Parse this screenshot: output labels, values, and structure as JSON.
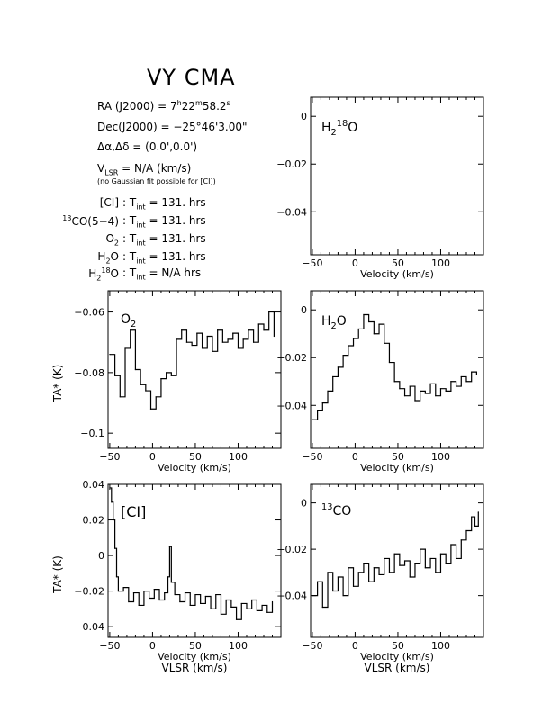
{
  "header": {
    "title": "VY CMA",
    "ra_label": "RA (J2000)",
    "ra_value": "7h22m58.2s",
    "dec_label": "Dec(J2000)",
    "dec_value": "−25°46'3.00\"",
    "offset_label": "Δα,Δδ",
    "offset_value": "(0.0',0.0')",
    "vlsr_label": "VLSR",
    "vlsr_value": "N/A (km/s)",
    "note": "(no Gaussian fit possible for [CI])",
    "integrations": [
      {
        "species": "[CI]",
        "tint": "131. hrs"
      },
      {
        "species": "13CO(5−4)",
        "tint": "131. hrs"
      },
      {
        "species": "O2",
        "tint": "131. hrs"
      },
      {
        "species": "H2O",
        "tint": "131. hrs"
      },
      {
        "species": "H2 18O",
        "tint": "N/A hrs"
      }
    ]
  },
  "chart_data": [
    {
      "type": "line",
      "label": "H2 18O",
      "xlabel": "Velocity (km/s)",
      "ylabel": "",
      "xlim": [
        -52,
        150
      ],
      "ylim": [
        -0.058,
        0.008
      ],
      "xticks": [
        -50,
        0,
        50,
        100
      ],
      "xtick_labels": [
        "−50",
        "0",
        "50",
        "100"
      ],
      "yticks": [
        0,
        -0.02,
        -0.04
      ],
      "ytick_labels": [
        "0",
        "−0.02",
        "−0.04"
      ],
      "x": [],
      "y": []
    },
    {
      "type": "line",
      "label": "O2",
      "xlabel": "Velocity (km/s)",
      "ylabel": "TA* (K)",
      "xlim": [
        -52,
        150
      ],
      "ylim": [
        -0.105,
        -0.053
      ],
      "xticks": [
        -50,
        0,
        50,
        100
      ],
      "xtick_labels": [
        "−50",
        "0",
        "50",
        "100"
      ],
      "yticks": [
        -0.06,
        -0.08,
        -0.1
      ],
      "ytick_labels": [
        "−0.06",
        "−0.08",
        "−0.1"
      ],
      "x": [
        -50,
        -44,
        -38,
        -32,
        -26,
        -20,
        -14,
        -8,
        -2,
        4,
        10,
        16,
        22,
        28,
        34,
        40,
        46,
        52,
        58,
        64,
        70,
        76,
        82,
        88,
        94,
        100,
        106,
        112,
        118,
        124,
        130,
        136,
        142
      ],
      "y": [
        -0.074,
        -0.081,
        -0.088,
        -0.072,
        -0.066,
        -0.079,
        -0.084,
        -0.086,
        -0.092,
        -0.088,
        -0.082,
        -0.08,
        -0.081,
        -0.069,
        -0.066,
        -0.07,
        -0.071,
        -0.067,
        -0.072,
        -0.068,
        -0.073,
        -0.066,
        -0.07,
        -0.069,
        -0.067,
        -0.072,
        -0.069,
        -0.066,
        -0.07,
        -0.064,
        -0.066,
        -0.06,
        -0.068
      ]
    },
    {
      "type": "line",
      "label": "H2O",
      "xlabel": "Velocity (km/s)",
      "ylabel": "",
      "xlim": [
        -52,
        150
      ],
      "ylim": [
        -0.058,
        0.008
      ],
      "xticks": [
        -50,
        0,
        50,
        100
      ],
      "xtick_labels": [
        "−50",
        "0",
        "50",
        "100"
      ],
      "yticks": [
        0,
        -0.02,
        -0.04
      ],
      "ytick_labels": [
        "0",
        "−0.02",
        "−0.04"
      ],
      "x": [
        -50,
        -44,
        -38,
        -32,
        -26,
        -20,
        -14,
        -8,
        -2,
        4,
        10,
        16,
        22,
        28,
        34,
        40,
        46,
        52,
        58,
        64,
        70,
        76,
        82,
        88,
        94,
        100,
        106,
        112,
        118,
        124,
        130,
        136,
        142
      ],
      "y": [
        -0.046,
        -0.042,
        -0.039,
        -0.034,
        -0.028,
        -0.024,
        -0.019,
        -0.015,
        -0.012,
        -0.008,
        -0.002,
        -0.005,
        -0.01,
        -0.006,
        -0.014,
        -0.022,
        -0.03,
        -0.033,
        -0.036,
        -0.032,
        -0.038,
        -0.034,
        -0.035,
        -0.031,
        -0.036,
        -0.033,
        -0.034,
        -0.03,
        -0.032,
        -0.028,
        -0.03,
        -0.026,
        -0.027
      ]
    },
    {
      "type": "line",
      "label": "[CI]",
      "xlabel": "Velocity (km/s)",
      "ylabel": "TA* (K)",
      "xlim": [
        -52,
        150
      ],
      "ylim": [
        -0.046,
        0.04
      ],
      "xticks": [
        -50,
        0,
        50,
        100
      ],
      "xtick_labels": [
        "−50",
        "0",
        "50",
        "100"
      ],
      "yticks": [
        0.04,
        0.02,
        0,
        -0.02,
        -0.04
      ],
      "ytick_labels": [
        "0.04",
        "0.02",
        "0",
        "−0.02",
        "−0.04"
      ],
      "x": [
        -50,
        -48,
        -46,
        -44,
        -42,
        -40,
        -34,
        -28,
        -22,
        -16,
        -10,
        -4,
        2,
        8,
        14,
        18,
        20,
        22,
        26,
        32,
        38,
        44,
        50,
        56,
        62,
        68,
        74,
        80,
        86,
        92,
        98,
        104,
        110,
        116,
        122,
        128,
        134,
        140
      ],
      "y": [
        0.038,
        0.03,
        0.02,
        0.004,
        -0.012,
        -0.02,
        -0.018,
        -0.026,
        -0.021,
        -0.028,
        -0.02,
        -0.024,
        -0.019,
        -0.025,
        -0.021,
        -0.012,
        0.005,
        -0.015,
        -0.022,
        -0.026,
        -0.021,
        -0.028,
        -0.022,
        -0.027,
        -0.023,
        -0.03,
        -0.022,
        -0.033,
        -0.025,
        -0.029,
        -0.036,
        -0.027,
        -0.03,
        -0.025,
        -0.031,
        -0.028,
        -0.032,
        -0.026
      ]
    },
    {
      "type": "line",
      "label": "13CO",
      "xlabel": "Velocity (km/s)",
      "ylabel": "",
      "xlim": [
        -52,
        150
      ],
      "ylim": [
        -0.058,
        0.008
      ],
      "xticks": [
        -50,
        0,
        50,
        100
      ],
      "xtick_labels": [
        "−50",
        "0",
        "50",
        "100"
      ],
      "yticks": [
        0,
        -0.02,
        -0.04
      ],
      "ytick_labels": [
        "0",
        "−0.02",
        "−0.04"
      ],
      "x": [
        -50,
        -44,
        -38,
        -32,
        -26,
        -20,
        -14,
        -8,
        -2,
        4,
        10,
        16,
        22,
        28,
        34,
        40,
        46,
        52,
        58,
        64,
        70,
        76,
        82,
        88,
        94,
        100,
        106,
        112,
        118,
        124,
        130,
        136,
        140,
        144
      ],
      "y": [
        -0.04,
        -0.034,
        -0.045,
        -0.03,
        -0.038,
        -0.032,
        -0.04,
        -0.028,
        -0.036,
        -0.03,
        -0.026,
        -0.034,
        -0.028,
        -0.031,
        -0.024,
        -0.03,
        -0.022,
        -0.027,
        -0.025,
        -0.032,
        -0.026,
        -0.02,
        -0.028,
        -0.024,
        -0.03,
        -0.022,
        -0.026,
        -0.018,
        -0.024,
        -0.016,
        -0.012,
        -0.006,
        -0.01,
        -0.004
      ]
    }
  ],
  "footer": {
    "vlsr_axis_label": "VLSR (km/s)"
  }
}
